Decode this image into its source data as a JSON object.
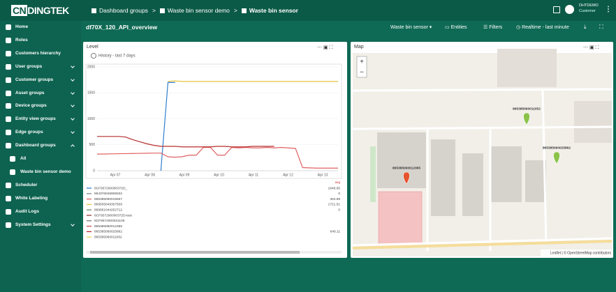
{
  "header": {
    "logo_prefix": "CN",
    "logo_name": "DINGTEK",
    "breadcrumb": [
      "Dashboard groups",
      "Waste bin sensor demo",
      "Waste bin sensor"
    ],
    "user": {
      "name": "DHTDEMO",
      "role": "Customer"
    }
  },
  "sidebar": {
    "items": [
      {
        "label": "Home",
        "expandable": false,
        "child": false
      },
      {
        "label": "Roles",
        "expandable": false,
        "child": false
      },
      {
        "label": "Customers hierarchy",
        "expandable": false,
        "child": false
      },
      {
        "label": "User groups",
        "expandable": true,
        "child": false
      },
      {
        "label": "Customer groups",
        "expandable": true,
        "child": false
      },
      {
        "label": "Asset groups",
        "expandable": true,
        "child": false
      },
      {
        "label": "Device groups",
        "expandable": true,
        "child": false
      },
      {
        "label": "Entity view groups",
        "expandable": true,
        "child": false
      },
      {
        "label": "Edge groups",
        "expandable": true,
        "child": false
      },
      {
        "label": "Dashboard groups",
        "expandable": true,
        "child": false
      },
      {
        "label": "All",
        "expandable": false,
        "child": true
      },
      {
        "label": "Waste bin sensor demo",
        "expandable": false,
        "child": true
      },
      {
        "label": "Scheduler",
        "expandable": false,
        "child": false
      },
      {
        "label": "White Labeling",
        "expandable": false,
        "child": false
      },
      {
        "label": "Audit Logs",
        "expandable": false,
        "child": false
      },
      {
        "label": "System Settings",
        "expandable": true,
        "child": false
      }
    ]
  },
  "toolbar": {
    "title": "df70X_120_API_overview",
    "entity_alias": "Waste bin sensor",
    "entities": "Entities",
    "filters": "Filters",
    "timewindow": "Realtime - last minute"
  },
  "level_widget": {
    "title": "Level",
    "subtitle": "History - last 7 days",
    "chart": {
      "type": "line",
      "ylim": [
        0,
        2000
      ],
      "yticks": [
        0,
        500,
        1000,
        1500,
        2000
      ],
      "grid": true,
      "x_labels": [
        "Apr 07",
        "Apr 08",
        "Apr 09",
        "Apr 10",
        "Apr 11",
        "Apr 12",
        "Apr 13"
      ],
      "series": [
        {
          "name": "8CF957200000372D_",
          "color": "#2f7fd0",
          "avg": 1648.65,
          "values": [
            null,
            null,
            null,
            null,
            null,
            null,
            null,
            null,
            null,
            0,
            1700,
            1700,
            null,
            null,
            null,
            null,
            null,
            null,
            null,
            null,
            null,
            null,
            null,
            null,
            null,
            null,
            null,
            null,
            null,
            null,
            null,
            null,
            null,
            null,
            null
          ]
        },
        {
          "name": "864376046906932",
          "color": "#7d8a8a",
          "avg": 0
        },
        {
          "name": "865385060015657",
          "color": "#e06060",
          "avg": 304.98,
          "values": [
            320,
            322,
            325,
            328,
            330,
            332,
            335,
            337,
            340,
            340,
            270,
            260,
            270,
            300,
            300,
            450,
            450,
            300,
            300,
            450,
            440,
            450,
            440,
            440,
            450,
            440,
            450,
            440,
            430,
            60,
            55,
            50,
            50,
            50,
            50
          ]
        },
        {
          "name": "869505049367509",
          "color": "#e6c43c",
          "avg": 1721.51,
          "values": [
            null,
            null,
            null,
            null,
            null,
            null,
            null,
            null,
            null,
            null,
            1720,
            1730,
            1720,
            1720,
            1720,
            1720,
            1720,
            1720,
            1720,
            1720,
            1720,
            1720,
            1720,
            1720,
            1720,
            1720,
            1720,
            1720,
            1720,
            1720,
            1720,
            1720,
            1720,
            1720,
            1720
          ]
        },
        {
          "name": "869951044252712",
          "color": "#6a8f6a",
          "avg": 0
        },
        {
          "name": "8CF957200000372D-test",
          "color": "#9a3a3a",
          "avg": null
        },
        {
          "name": "8CF957200003110​6",
          "color": "#777777",
          "avg": null
        },
        {
          "name": "865385060012365",
          "color": "#c74a4a",
          "avg": null
        },
        {
          "name": "865385060025862",
          "color": "#b72d2d",
          "avg": 640.11,
          "values": [
            660,
            660,
            660,
            660,
            650,
            600,
            560,
            520,
            490,
            470,
            470,
            470,
            460,
            460,
            460,
            460,
            460,
            470,
            470,
            460,
            460,
            460,
            470,
            470,
            470,
            470,
            null,
            null,
            null,
            null,
            null,
            null,
            null,
            null,
            null
          ]
        },
        {
          "name": "865385060011052",
          "color": "#e8d45a",
          "avg": null
        }
      ]
    },
    "legend_header": "avg"
  },
  "map_widget": {
    "title": "Map",
    "zoom_in": "+",
    "zoom_out": "−",
    "attribution": "Leaflet | © OpenStreetMap contributors",
    "markers": [
      {
        "label": "865385060011052",
        "color": "#8bc34a"
      },
      {
        "label": "865385060025862",
        "color": "#8bc34a"
      },
      {
        "label": "865385060012365",
        "color": "#e5532d"
      }
    ]
  }
}
